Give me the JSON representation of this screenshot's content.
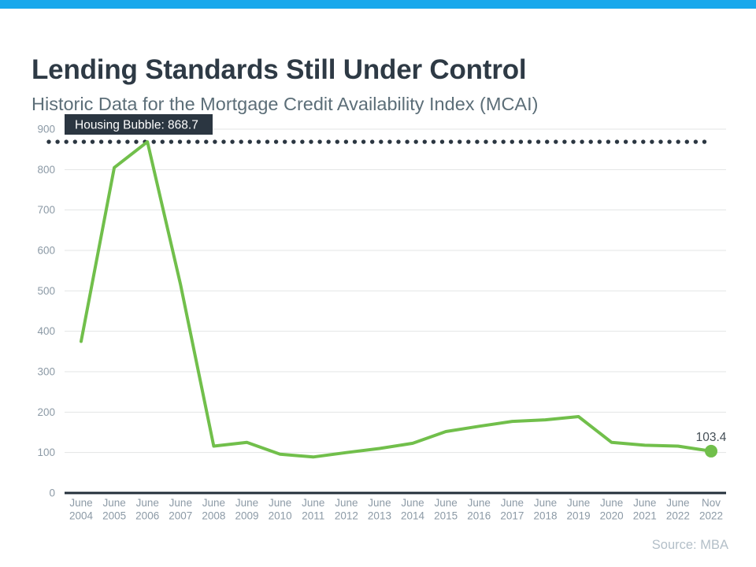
{
  "page": {
    "title": "Lending Standards Still Under Control",
    "subtitle": "Historic Data for the Mortgage Credit Availability Index (MCAI)",
    "source": "Source: MBA"
  },
  "colors": {
    "accent_bar": "#18a8ec",
    "title": "#2e3a45",
    "subtitle": "#5c6e78",
    "line": "#71bf4b",
    "dark": "#2b3641",
    "axis": "#232f3a",
    "grid": "#e3e4e5",
    "tick": "#8c9aa6",
    "value_label": "#454f57",
    "annotation_text": "#ffffff",
    "source": "#b3bfc8"
  },
  "chart_data": {
    "type": "line",
    "title": "Historic Data for the Mortgage Credit Availability Index (MCAI)",
    "categories": [
      "June 2004",
      "June 2005",
      "June 2006",
      "June 2007",
      "June 2008",
      "June 2009",
      "June 2010",
      "June 2011",
      "June 2012",
      "June 2013",
      "June 2014",
      "June 2015",
      "June 2016",
      "June 2017",
      "June 2018",
      "June 2019",
      "June 2020",
      "June 2021",
      "June 2022",
      "Nov 2022"
    ],
    "series": [
      {
        "name": "MCAI",
        "values": [
          375,
          805,
          868.7,
          515,
          116,
          125,
          96,
          89,
          100,
          110,
          123,
          152,
          165,
          177,
          181,
          189,
          125,
          118,
          116,
          103.4
        ]
      }
    ],
    "ylim": [
      0,
      900
    ],
    "yticks": [
      0,
      100,
      200,
      300,
      400,
      500,
      600,
      700,
      800,
      900
    ],
    "grid": true,
    "legend": false,
    "annotations": {
      "threshold": {
        "label": "Housing Bubble: 868.7",
        "value": 868.7,
        "style": "dotted"
      },
      "last_point_label": "103.4"
    }
  }
}
